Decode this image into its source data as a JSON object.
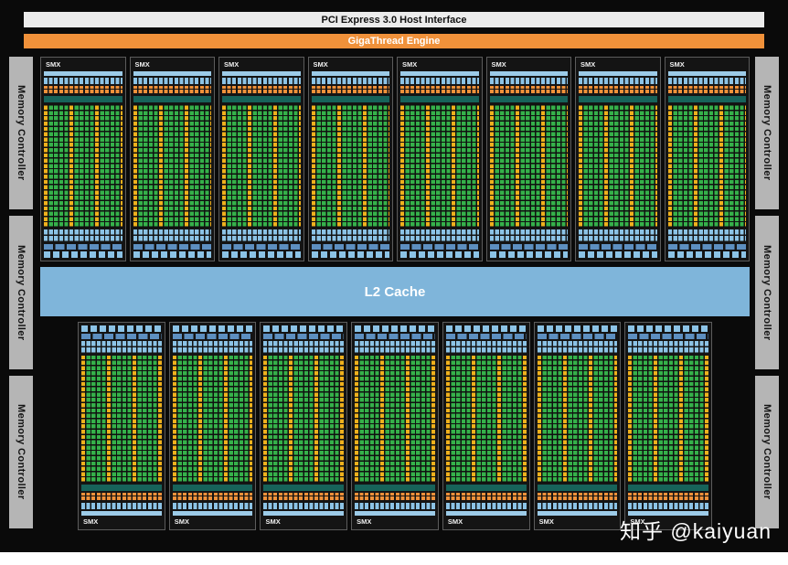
{
  "header": {
    "pci_label": "PCI Express 3.0 Host Interface",
    "gigathread_label": "GigaThread Engine"
  },
  "l2_cache_label": "L2 Cache",
  "smx": {
    "label": "SMX",
    "top_count": 8,
    "bottom_count": 7
  },
  "memory_controller": {
    "label": "Memory Controller",
    "per_side": 3
  },
  "watermark": "知乎 @kaiyuan",
  "colors": {
    "background": "#0a0a0a",
    "host_bar_gray": "#ececec",
    "engine_orange": "#f0913a",
    "l2_blue": "#7fb5da",
    "cache_blue": "#8cc3e6",
    "core_green": "#35b14a",
    "sfu_yellow": "#efb11d",
    "register_teal": "#17635a",
    "controller_gray": "#b5b5b5"
  }
}
